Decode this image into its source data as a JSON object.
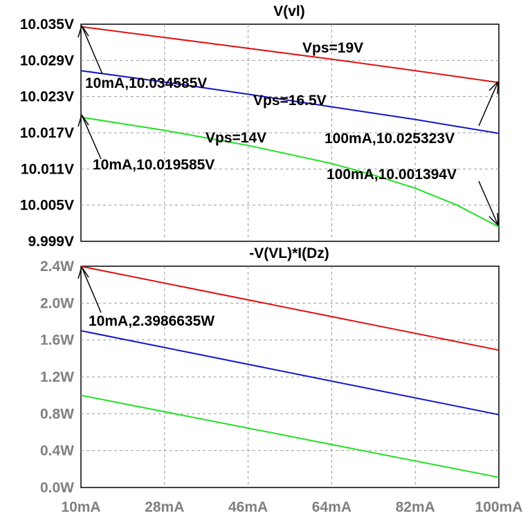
{
  "colors": {
    "title": "#22c933",
    "top_tick_labels": "#000000",
    "bottom_tick_labels": "#808080",
    "grid": "#9a9a9a",
    "series_red": "#e01010",
    "series_blue": "#1414c8",
    "series_green": "#22e022"
  },
  "chart_data": [
    {
      "type": "line",
      "title": "V(vl)",
      "xlim": [
        10,
        100
      ],
      "ylim": [
        9.999,
        10.035
      ],
      "x_ticks": [
        10,
        28,
        46,
        64,
        82,
        100
      ],
      "y_ticks": [
        9.999,
        10.005,
        10.011,
        10.017,
        10.023,
        10.029,
        10.035
      ],
      "y_tick_labels": [
        "9.999V",
        "10.005V",
        "10.011V",
        "10.017V",
        "10.023V",
        "10.029V",
        "10.035V"
      ],
      "grid": true,
      "series": [
        {
          "color": "#e01010",
          "x": [
            10,
            28,
            46,
            64,
            82,
            100
          ],
          "values": [
            10.034585,
            10.0328,
            10.031,
            10.0292,
            10.0273,
            10.025323
          ]
        },
        {
          "color": "#1414c8",
          "x": [
            10,
            28,
            46,
            64,
            82,
            100
          ],
          "values": [
            10.0273,
            10.0254,
            10.0234,
            10.0213,
            10.0192,
            10.0169
          ]
        },
        {
          "color": "#22e022",
          "x": [
            10,
            28,
            46,
            64,
            73,
            82,
            91,
            100
          ],
          "values": [
            10.019585,
            10.0174,
            10.0149,
            10.0119,
            10.01,
            10.0078,
            10.005,
            10.001394
          ]
        }
      ],
      "annotations": [
        {
          "text": "Vps=19V"
        },
        {
          "text": "Vps=16.5V"
        },
        {
          "text": "Vps=14V"
        },
        {
          "text": "10mA,10.034585V"
        },
        {
          "text": "10mA,10.019585V"
        },
        {
          "text": "100mA,10.025323V"
        },
        {
          "text": "100mA,10.001394V"
        }
      ]
    },
    {
      "type": "line",
      "title": "-V(VL)*I(Dz)",
      "xlim": [
        10,
        100
      ],
      "ylim": [
        0,
        2.4
      ],
      "x_ticks": [
        10,
        28,
        46,
        64,
        82,
        100
      ],
      "x_tick_labels": [
        "10mA",
        "28mA",
        "46mA",
        "64mA",
        "82mA",
        "100mA"
      ],
      "y_ticks": [
        0,
        0.4,
        0.8,
        1.2,
        1.6,
        2.0,
        2.4
      ],
      "y_tick_labels": [
        "0.0W",
        "0.4W",
        "0.8W",
        "1.2W",
        "1.6W",
        "2.0W",
        "2.4W"
      ],
      "grid": true,
      "series": [
        {
          "color": "#e01010",
          "x": [
            10,
            100
          ],
          "values": [
            2.3986635,
            1.49
          ]
        },
        {
          "color": "#1414c8",
          "x": [
            10,
            100
          ],
          "values": [
            1.7,
            0.79
          ]
        },
        {
          "color": "#22e022",
          "x": [
            10,
            100
          ],
          "values": [
            1.0,
            0.11
          ]
        }
      ],
      "annotations": [
        {
          "text": "10mA,2.3986635W"
        }
      ]
    }
  ]
}
